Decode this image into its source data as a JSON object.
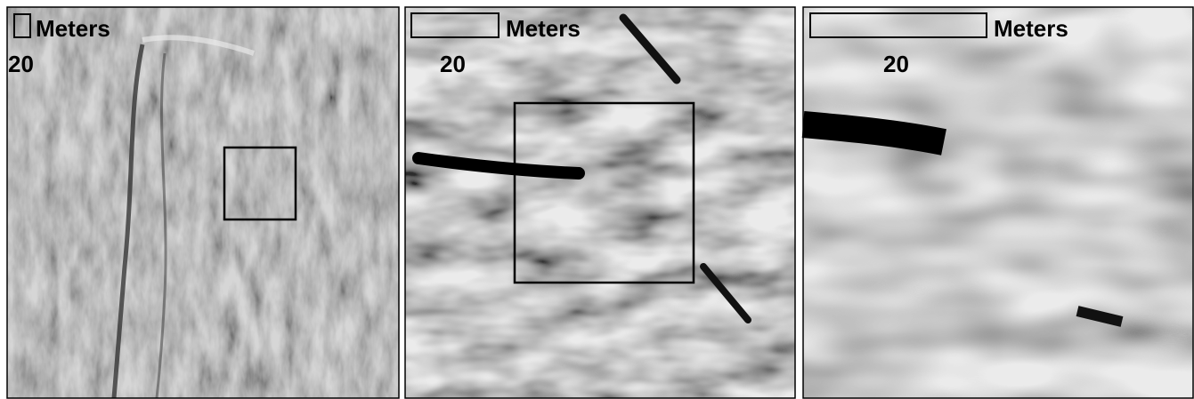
{
  "panels": [
    {
      "scale_unit": "Meters",
      "scale_value": 20
    },
    {
      "scale_unit": "Meters",
      "scale_value": 20
    },
    {
      "scale_unit": "Meters",
      "scale_value": 20
    }
  ]
}
